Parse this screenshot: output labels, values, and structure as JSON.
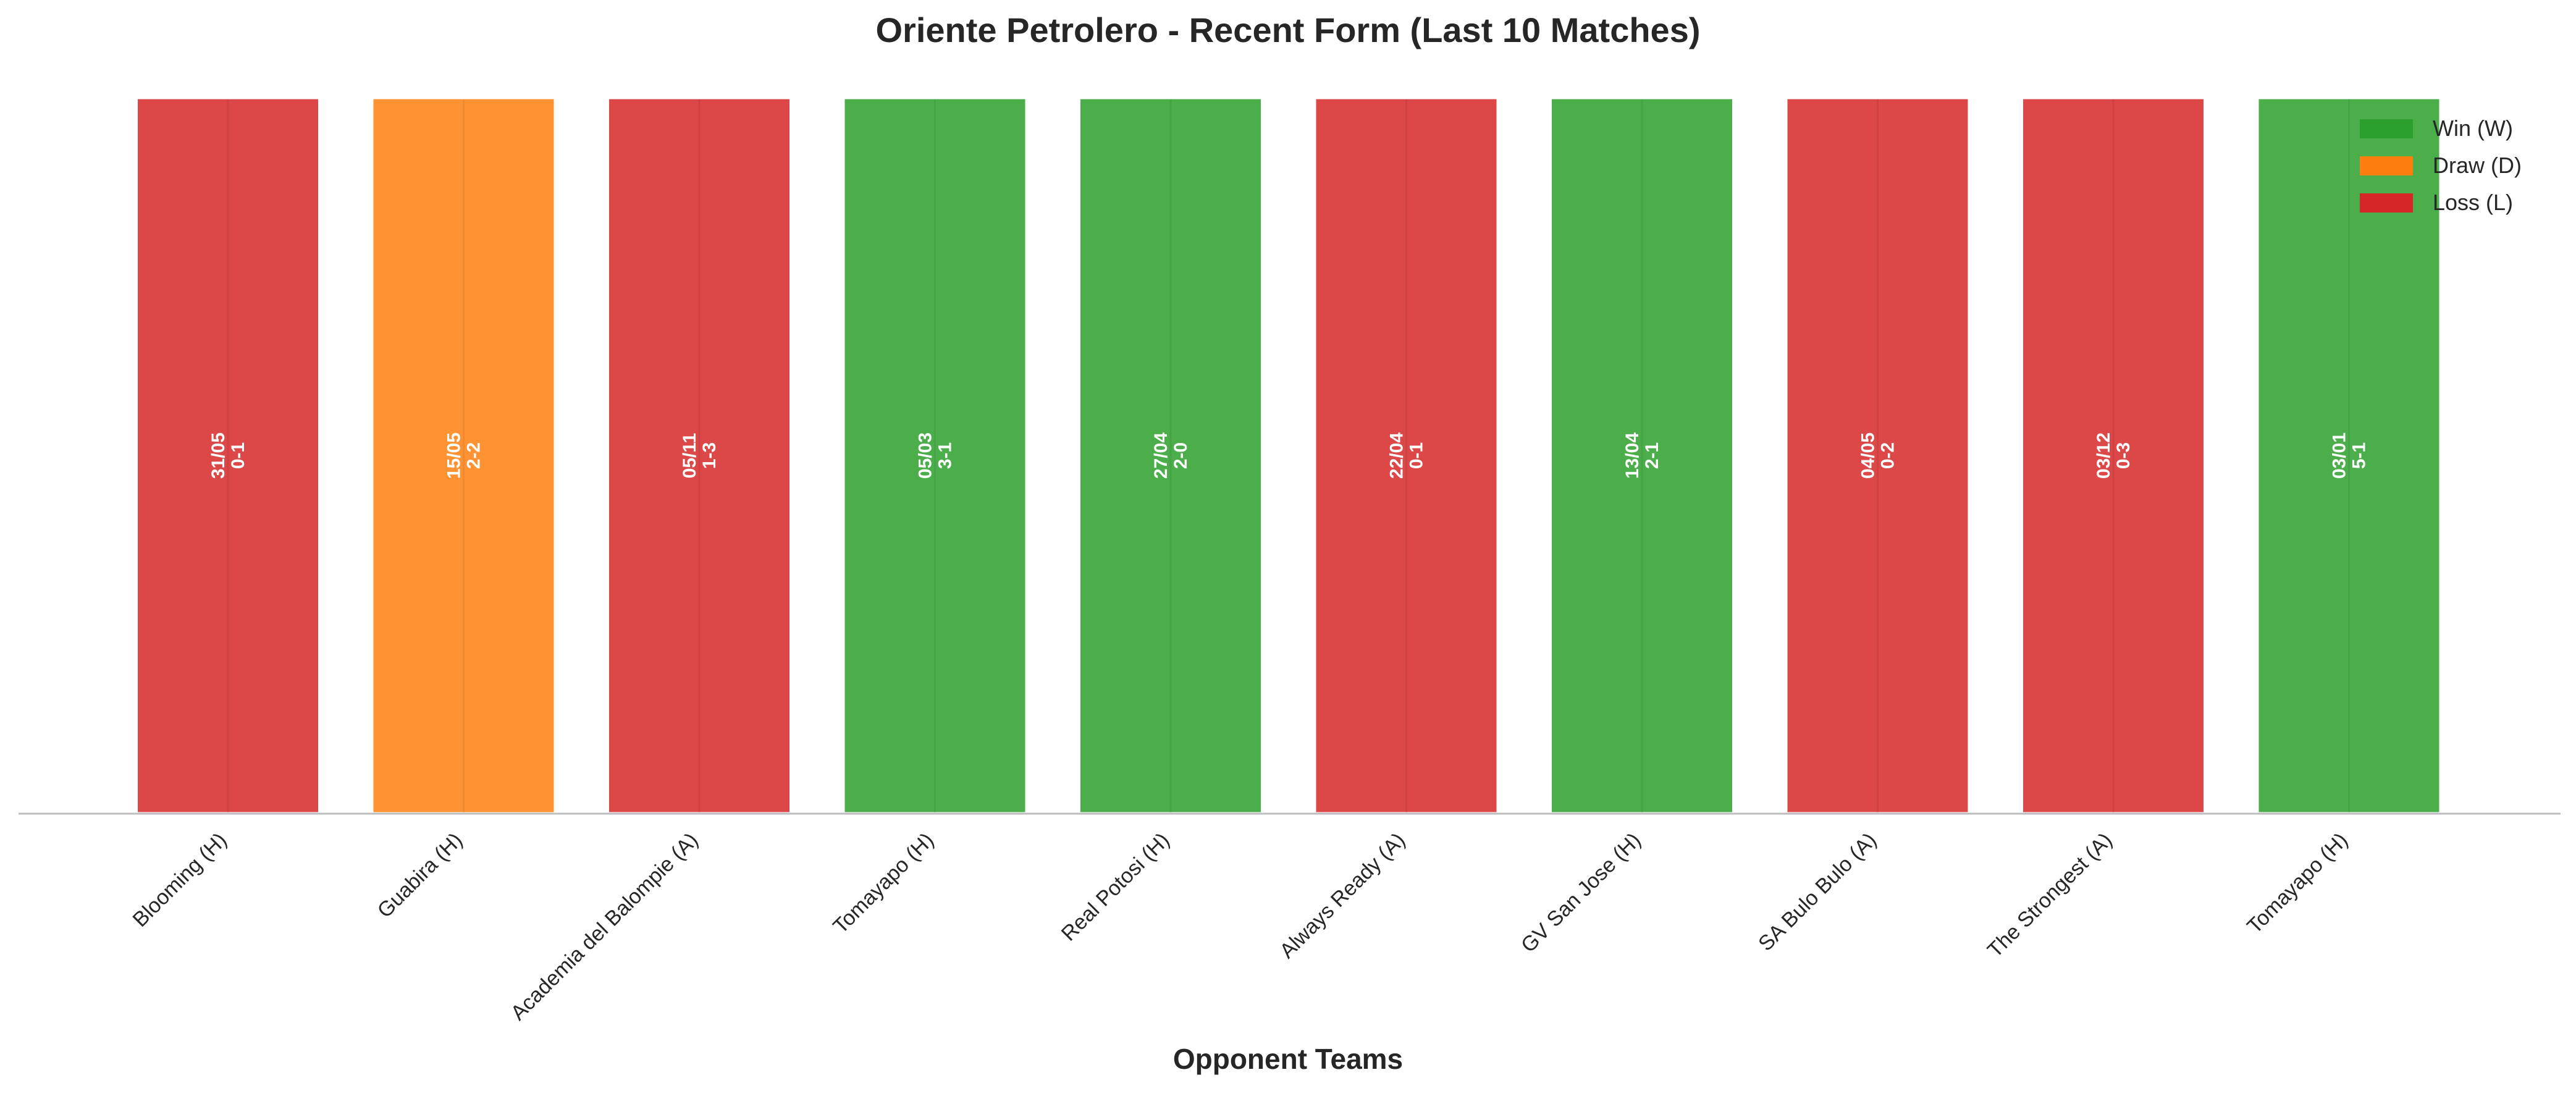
{
  "chart_data": {
    "type": "bar",
    "title": "Oriente Petrolero - Recent Form (Last 10 Matches)",
    "xlabel": "Opponent Teams",
    "ylabel": "",
    "categories": [
      "Blooming (H)",
      "Guabira (H)",
      "Academia del Balompie (A)",
      "Tomayapo (H)",
      "Real Potosi (H)",
      "Always Ready (A)",
      "GV San Jose (H)",
      "SA Bulo Bulo (A)",
      "The Strongest (A)",
      "Tomayapo (H)"
    ],
    "values": [
      1,
      1,
      1,
      1,
      1,
      1,
      1,
      1,
      1,
      1
    ],
    "results": [
      "L",
      "D",
      "L",
      "W",
      "W",
      "L",
      "W",
      "L",
      "L",
      "W"
    ],
    "dates": [
      "31/05",
      "15/05",
      "05/11",
      "05/03",
      "27/04",
      "22/04",
      "13/04",
      "04/05",
      "03/12",
      "03/01"
    ],
    "scores": [
      "0-1",
      "2-2",
      "1-3",
      "3-1",
      "2-0",
      "0-1",
      "2-1",
      "0-2",
      "0-3",
      "5-1"
    ],
    "ylim": [
      0,
      1
    ],
    "grid": false,
    "legend_position": "top-right",
    "legend": [
      {
        "key": "W",
        "label": "Win (W)",
        "color": "#2ca02c"
      },
      {
        "key": "D",
        "label": "Draw (D)",
        "color": "#ff7f0e"
      },
      {
        "key": "L",
        "label": "Loss (L)",
        "color": "#d62728"
      }
    ],
    "colors": {
      "W": "#2ca02c",
      "D": "#ff7f0e",
      "L": "#d62728"
    }
  }
}
